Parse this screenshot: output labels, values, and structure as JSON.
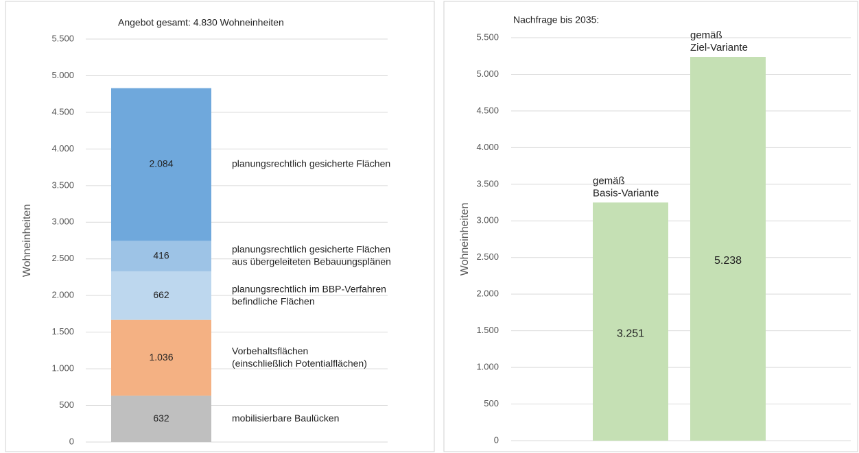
{
  "chart_data": [
    {
      "type": "stacked_bar",
      "title": "Angebot gesamt: 4.830 Wohneinheiten",
      "y_label": "Wohneinheiten",
      "categories": [
        null
      ],
      "series": [
        {
          "name": "mobilisierbare Baulücken",
          "color": "#bfbfbf",
          "values": [
            632
          ],
          "value_labels": [
            "632"
          ]
        },
        {
          "name": "Vorbehaltsflächen\n(einschließlich Potentialflächen)",
          "color": "#f4b183",
          "values": [
            1036
          ],
          "value_labels": [
            "1.036"
          ]
        },
        {
          "name": "planungsrechtlich im BBP-Verfahren\nbefindliche Flächen",
          "color": "#bdd7ee",
          "values": [
            662
          ],
          "value_labels": [
            "662"
          ]
        },
        {
          "name": "planungsrechtlich gesicherte Flächen\naus übergeleiteten Bebauungsplänen",
          "color": "#9dc3e6",
          "values": [
            416
          ],
          "value_labels": [
            "416"
          ]
        },
        {
          "name": "planungsrechtlich gesicherte Flächen",
          "color": "#6fa8dc",
          "values": [
            2084
          ],
          "value_labels": [
            "2.084"
          ]
        }
      ],
      "ylim": [
        0,
        5500
      ],
      "yticks": [
        0,
        500,
        {
          "value": 1000,
          "label": "1.000"
        },
        {
          "value": 1500,
          "label": "1.500"
        },
        {
          "value": 2000,
          "label": "2.000"
        },
        {
          "value": 2500,
          "label": "2.500"
        },
        {
          "value": 3000,
          "label": "3.000"
        },
        {
          "value": 3500,
          "label": "3.500"
        },
        {
          "value": 4000,
          "label": "4.000"
        },
        {
          "value": 4500,
          "label": "4.500"
        },
        {
          "value": 5000,
          "label": "5.000"
        },
        {
          "value": 5500,
          "label": "5.500"
        }
      ],
      "grid": true
    },
    {
      "type": "bar",
      "title": "Nachfrage bis 2035:",
      "y_label": "Wohneinheiten",
      "categories": [
        "gemäß\nBasis-Variante",
        "gemäß\nZiel-Variante"
      ],
      "values": [
        3251,
        5238
      ],
      "value_labels": [
        "3.251",
        "5.238"
      ],
      "color": "#c5e0b4",
      "ylim": [
        0,
        5500
      ],
      "yticks": [
        0,
        500,
        {
          "value": 1000,
          "label": "1.000"
        },
        {
          "value": 1500,
          "label": "1.500"
        },
        {
          "value": 2000,
          "label": "2.000"
        },
        {
          "value": 2500,
          "label": "2.500"
        },
        {
          "value": 3000,
          "label": "3.000"
        },
        {
          "value": 3500,
          "label": "3.500"
        },
        {
          "value": 4000,
          "label": "4.000"
        },
        {
          "value": 4500,
          "label": "4.500"
        },
        {
          "value": 5000,
          "label": "5.000"
        },
        {
          "value": 5500,
          "label": "5.500"
        }
      ],
      "grid": true
    }
  ]
}
